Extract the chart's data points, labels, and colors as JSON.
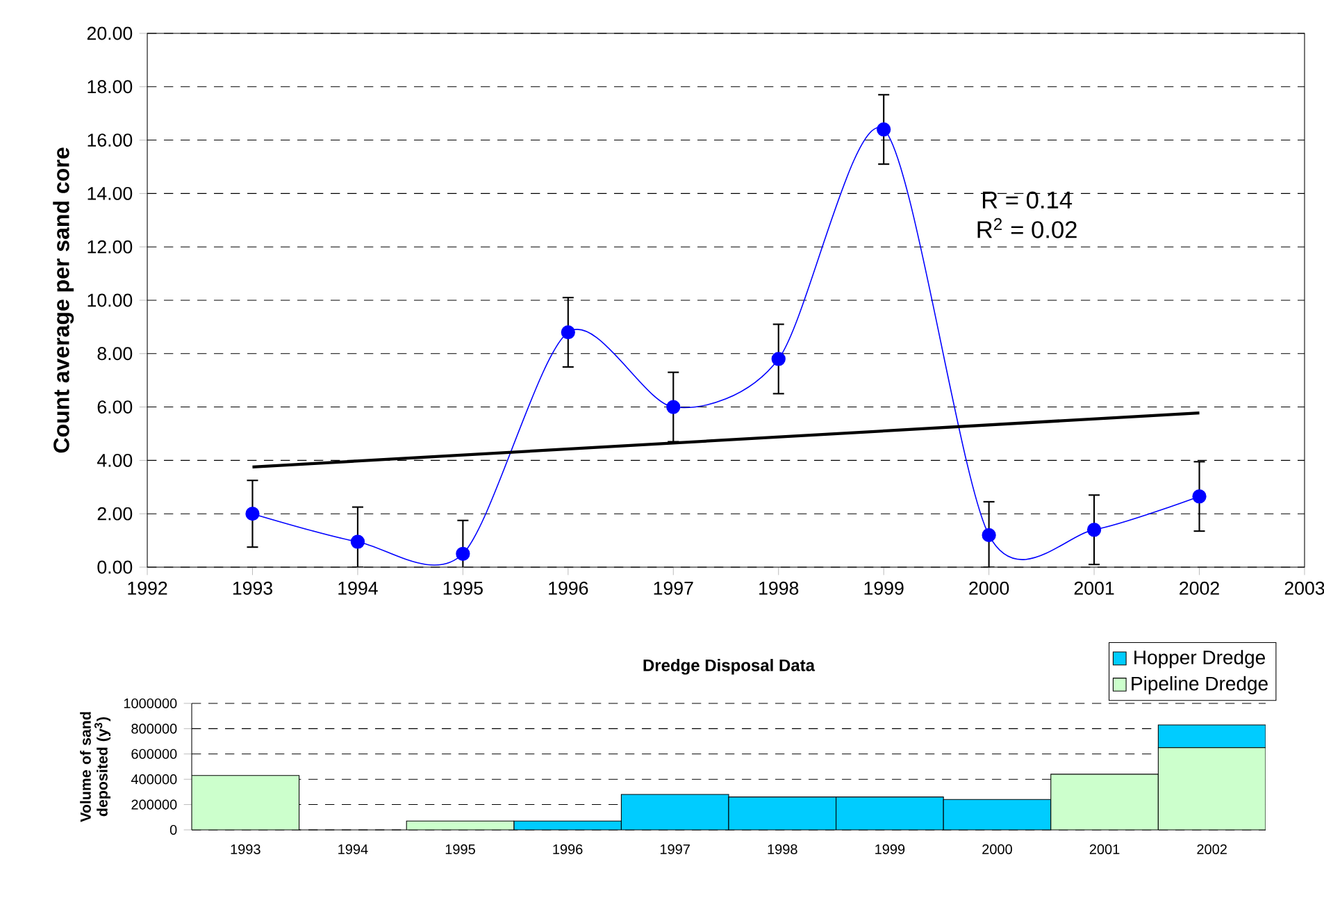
{
  "chart_data": [
    {
      "type": "line",
      "ylabel": "Count average per sand core",
      "x": [
        1993,
        1994,
        1995,
        1996,
        1997,
        1998,
        1999,
        2000,
        2001,
        2002
      ],
      "series": [
        {
          "color": "#0000ff",
          "marker": "circle",
          "values": [
            2.0,
            0.95,
            0.5,
            8.8,
            6.0,
            7.8,
            16.4,
            1.2,
            1.4,
            2.65
          ],
          "errors": [
            1.25,
            [
              0,
              2.25
            ],
            1.25,
            1.3,
            1.3,
            1.3,
            1.3,
            [
              0,
              2.45
            ],
            1.3,
            1.3
          ]
        },
        {
          "type": "line",
          "color": "#000000",
          "marker": "none",
          "x": [
            1993,
            2002
          ],
          "values": [
            3.75,
            5.78
          ]
        }
      ],
      "xlim": [
        1992,
        2003
      ],
      "xticks": [
        1992,
        1993,
        1994,
        1995,
        1996,
        1997,
        1998,
        1999,
        2000,
        2001,
        2002,
        2003
      ],
      "ylim": [
        0,
        20
      ],
      "yticks": [
        {
          "value": 0,
          "label": "0.00"
        },
        {
          "value": 2,
          "label": "2.00"
        },
        {
          "value": 4,
          "label": "4.00"
        },
        {
          "value": 6,
          "label": "6.00"
        },
        {
          "value": 8,
          "label": "8.00"
        },
        {
          "value": 10,
          "label": "10.00"
        },
        {
          "value": 12,
          "label": "12.00"
        },
        {
          "value": 14,
          "label": "14.00"
        },
        {
          "value": 16,
          "label": "16.00"
        },
        {
          "value": 18,
          "label": "18.00"
        },
        {
          "value": 20,
          "label": "20.00"
        }
      ],
      "grid": "y",
      "line_style": "solid",
      "annotations": [
        "R = 0.14",
        "R$^{2}$ = 0.02"
      ]
    },
    {
      "type": "bar",
      "stacked": true,
      "title": "Dredge Disposal Data",
      "ylabel": "Volume of sand deposited (y$^{3}$)",
      "categories": [
        "1993",
        "1994",
        "1995",
        "1996",
        "1997",
        "1998",
        "1999",
        "2000",
        "2001",
        "2002"
      ],
      "series": [
        {
          "name": "Pipeline Dredge",
          "color": "#ccffcc",
          "values": [
            430000,
            0,
            70000,
            0,
            0,
            0,
            0,
            0,
            440000,
            650000
          ]
        },
        {
          "name": "Hopper Dredge",
          "color": "#00ccff",
          "values": [
            0,
            0,
            0,
            70000,
            280000,
            260000,
            260000,
            240000,
            0,
            180000
          ]
        }
      ],
      "ylim": [
        0,
        1000000
      ],
      "yticks": [
        0,
        200000,
        400000,
        600000,
        800000,
        1000000
      ],
      "grid": "y",
      "legend": "top right"
    }
  ]
}
